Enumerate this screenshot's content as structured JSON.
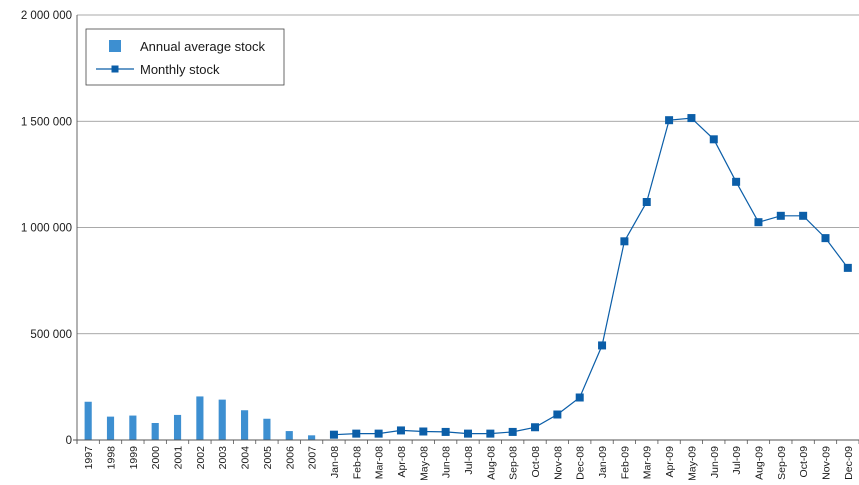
{
  "chart_data": {
    "type": "bar+line",
    "title": "",
    "xlabel": "",
    "ylabel": "",
    "ylim": [
      0,
      2000000
    ],
    "y_ticks": [
      {
        "value": 0,
        "label": "0"
      },
      {
        "value": 500000,
        "label": "500 000"
      },
      {
        "value": 1000000,
        "label": "1 000 000"
      },
      {
        "value": 1500000,
        "label": "1 500 000"
      },
      {
        "value": 2000000,
        "label": "2 000 000"
      }
    ],
    "grid": true,
    "legend_position": "top-left",
    "categories": [
      "1997",
      "1998",
      "1999",
      "2000",
      "2001",
      "2002",
      "2003",
      "2004",
      "2005",
      "2006",
      "2007",
      "Jan-08",
      "Feb-08",
      "Mar-08",
      "Apr-08",
      "May-08",
      "Jun-08",
      "Jul-08",
      "Aug-08",
      "Sep-08",
      "Oct-08",
      "Nov-08",
      "Dec-08",
      "Jan-09",
      "Feb-09",
      "Mar-09",
      "Apr-09",
      "May-09",
      "Jun-09",
      "Jul-09",
      "Aug-09",
      "Sep-09",
      "Oct-09",
      "Nov-09",
      "Dec-09"
    ],
    "series": [
      {
        "name": "Annual average stock",
        "kind": "bar",
        "color": "#3d8fd1",
        "values": [
          180000,
          110000,
          115000,
          80000,
          118000,
          205000,
          190000,
          140000,
          100000,
          42000,
          22000,
          null,
          null,
          null,
          null,
          null,
          null,
          null,
          null,
          null,
          null,
          null,
          null,
          null,
          null,
          null,
          null,
          null,
          null,
          null,
          null,
          null,
          null,
          null,
          null
        ]
      },
      {
        "name": "Monthly stock",
        "kind": "line",
        "color": "#0b5ea8",
        "values": [
          null,
          null,
          null,
          null,
          null,
          null,
          null,
          null,
          null,
          null,
          null,
          25000,
          30000,
          30000,
          45000,
          40000,
          38000,
          30000,
          30000,
          38000,
          60000,
          120000,
          200000,
          445000,
          935000,
          1120000,
          1505000,
          1515000,
          1415000,
          1215000,
          1025000,
          1055000,
          1055000,
          950000,
          810000
        ]
      }
    ]
  }
}
